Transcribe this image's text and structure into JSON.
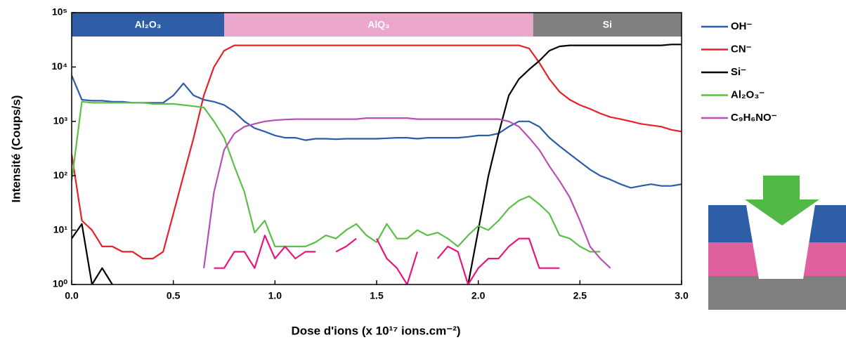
{
  "chart_data": {
    "type": "line",
    "xlabel": "Dose d'ions (x 10¹⁷ ions.cm⁻²)",
    "ylabel": "Intensité (Coups/s)",
    "log_y": true,
    "xlim": [
      0,
      3
    ],
    "ylim": [
      1,
      100000
    ],
    "xticks": [
      {
        "value": 0,
        "label": "0.0"
      },
      0.5,
      {
        "value": 1,
        "label": "1.0"
      },
      1.5,
      {
        "value": 2,
        "label": "2.0"
      },
      2.5,
      {
        "value": 3,
        "label": "3.0"
      }
    ],
    "yticks": [
      {
        "value": 1,
        "label": "10⁰"
      },
      {
        "value": 10,
        "label": "10¹"
      },
      {
        "value": 100,
        "label": "10²"
      },
      {
        "value": 1000,
        "label": "10³"
      },
      {
        "value": 10000,
        "label": "10⁴"
      },
      {
        "value": 100000,
        "label": "10⁵"
      }
    ],
    "bands": [
      {
        "label": "Al₂O₃",
        "start": 0,
        "end": 0.75,
        "color": "#2f5ea8"
      },
      {
        "label": "AlQ₃",
        "start": 0.75,
        "end": 2.27,
        "color": "#eba6cc"
      },
      {
        "label": "Si",
        "start": 2.27,
        "end": 3,
        "color": "#808080"
      }
    ],
    "x": [
      0,
      0.05,
      0.1,
      0.15,
      0.2,
      0.25,
      0.3,
      0.35,
      0.4,
      0.45,
      0.5,
      0.55,
      0.6,
      0.65,
      0.7,
      0.75,
      0.8,
      0.85,
      0.9,
      0.95,
      1,
      1.05,
      1.1,
      1.15,
      1.2,
      1.25,
      1.3,
      1.35,
      1.4,
      1.45,
      1.5,
      1.55,
      1.6,
      1.65,
      1.7,
      1.75,
      1.8,
      1.85,
      1.9,
      1.95,
      2,
      2.05,
      2.1,
      2.15,
      2.2,
      2.25,
      2.3,
      2.35,
      2.4,
      2.45,
      2.5,
      2.55,
      2.6,
      2.65,
      2.7,
      2.75,
      2.8,
      2.85,
      2.9,
      2.95,
      3
    ],
    "series": [
      {
        "name": "OH⁻",
        "color": "#2a5caa",
        "values": [
          7000,
          2500,
          2400,
          2400,
          2300,
          2300,
          2200,
          2200,
          2200,
          2200,
          3000,
          5000,
          3000,
          2500,
          2300,
          2000,
          1500,
          1000,
          750,
          650,
          550,
          500,
          500,
          450,
          480,
          480,
          470,
          480,
          480,
          480,
          480,
          490,
          500,
          500,
          480,
          500,
          500,
          500,
          500,
          520,
          550,
          550,
          600,
          800,
          1000,
          1000,
          800,
          500,
          350,
          250,
          180,
          130,
          100,
          85,
          70,
          60,
          65,
          70,
          65,
          65,
          70
        ]
      },
      {
        "name": "CN⁻",
        "color": "#e8202a",
        "values": [
          250,
          15,
          10,
          5,
          5,
          4,
          4,
          3,
          3,
          4,
          20,
          100,
          500,
          3000,
          10000,
          20000,
          25000,
          25000,
          25000,
          25000,
          25000,
          25000,
          25000,
          25000,
          25000,
          25000,
          25000,
          25000,
          25000,
          25000,
          25000,
          25000,
          25000,
          25000,
          25000,
          25000,
          25000,
          25000,
          25000,
          25000,
          25000,
          25000,
          25000,
          25000,
          25000,
          22000,
          12000,
          6000,
          3500,
          2500,
          2000,
          1700,
          1400,
          1200,
          1100,
          1000,
          900,
          850,
          800,
          700,
          650
        ]
      },
      {
        "name": "Si⁻",
        "color": "#000000",
        "values": [
          7,
          13,
          1,
          2,
          1,
          null,
          null,
          null,
          null,
          null,
          null,
          null,
          null,
          null,
          null,
          null,
          null,
          null,
          null,
          null,
          null,
          null,
          null,
          null,
          null,
          null,
          null,
          null,
          null,
          null,
          null,
          null,
          null,
          null,
          null,
          null,
          null,
          null,
          null,
          1,
          10,
          100,
          600,
          3000,
          6000,
          9000,
          13000,
          20000,
          24000,
          25000,
          25000,
          25000,
          25000,
          25000,
          25000,
          25000,
          25000,
          25000,
          25000,
          26000,
          26000
        ]
      },
      {
        "name": "Al₂O₃⁻",
        "color": "#5cbf47",
        "values": [
          80,
          2300,
          2200,
          2200,
          2200,
          2200,
          2200,
          2200,
          2100,
          2100,
          2100,
          2000,
          1900,
          1800,
          1000,
          500,
          150,
          50,
          9,
          15,
          5,
          5,
          5,
          5,
          6,
          8,
          7,
          10,
          13,
          8,
          6,
          13,
          7,
          7,
          10,
          8,
          9,
          7,
          5,
          8,
          12,
          10,
          15,
          25,
          35,
          42,
          30,
          20,
          8,
          7,
          5,
          4,
          4,
          null,
          null,
          null,
          null,
          null,
          null,
          null,
          null
        ]
      },
      {
        "name": "C₉H₆NO⁻",
        "color": "#b84fb5",
        "values": [
          null,
          null,
          null,
          null,
          null,
          null,
          null,
          null,
          null,
          null,
          null,
          null,
          null,
          2,
          50,
          300,
          600,
          800,
          900,
          1000,
          1050,
          1080,
          1100,
          1100,
          1100,
          1100,
          1100,
          1100,
          1100,
          1150,
          1150,
          1150,
          1150,
          1150,
          1100,
          1100,
          1100,
          1100,
          1100,
          1100,
          1100,
          1100,
          1100,
          1000,
          800,
          500,
          300,
          150,
          80,
          40,
          15,
          5,
          3,
          2,
          null,
          null,
          null,
          null,
          null,
          null,
          null
        ]
      },
      {
        "color": "#e8157f",
        "values": [
          null,
          null,
          null,
          null,
          null,
          null,
          null,
          null,
          null,
          null,
          null,
          null,
          null,
          null,
          2,
          2,
          4,
          4,
          2,
          8,
          3,
          5,
          3,
          4,
          4,
          null,
          4,
          5,
          7,
          null,
          7,
          3,
          2,
          1,
          4,
          null,
          3,
          5,
          4,
          1,
          2,
          3,
          3,
          5,
          7,
          7,
          2,
          2,
          2,
          null,
          null,
          null,
          null,
          null,
          null,
          null,
          null,
          null,
          null,
          null,
          null
        ]
      }
    ]
  }
}
